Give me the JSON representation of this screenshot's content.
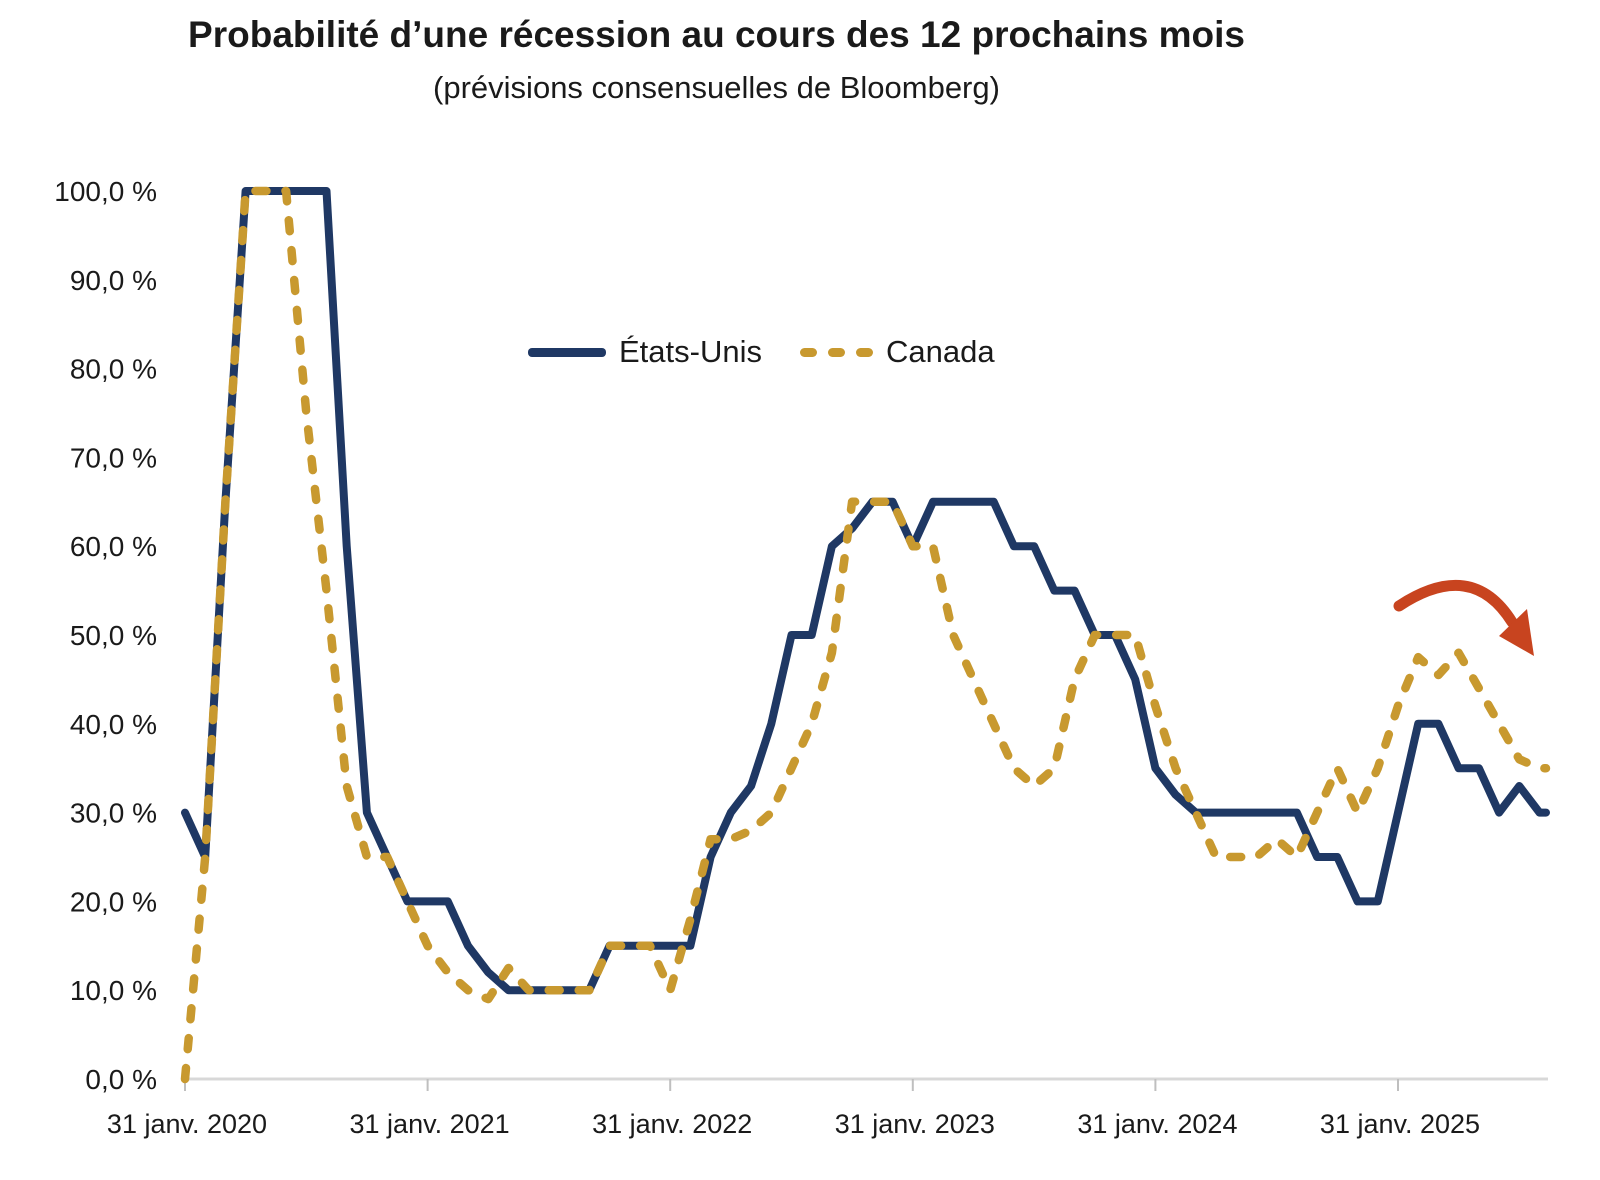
{
  "page": {
    "background": "#FFFFFF"
  },
  "chart_data": {
    "type": "line",
    "title": "Probabilité d’une récession au cours des 12 prochains mois",
    "subtitle": "(prévisions consensuelles de Bloomberg)",
    "grid": false,
    "frequency": "monthly",
    "x_start": "31 janv. 2020",
    "x_end": "août 2025",
    "x_axis": {
      "tick_labels": [
        "31 janv. 2020",
        "31 janv. 2021",
        "31 janv. 2022",
        "31 janv. 2023",
        "31 janv. 2024",
        "31 janv. 2025"
      ]
    },
    "y_axis": {
      "min": 0,
      "max": 100,
      "unit": "%",
      "tick_labels": [
        "0,0 %",
        "10,0 %",
        "20,0 %",
        "30,0 %",
        "40,0 %",
        "50,0 %",
        "60,0 %",
        "70,0 %",
        "80,0 %",
        "90,0 %",
        "100,0 %"
      ]
    },
    "legend": {
      "position": "inside-top-center",
      "entries": [
        "États-Unis",
        "Canada"
      ]
    },
    "series": [
      {
        "name": "États-Unis",
        "color": "#1F3864",
        "style": "solid",
        "values": [
          30,
          25,
          65,
          100,
          100,
          100,
          100,
          100,
          60,
          30,
          25,
          20,
          20,
          20,
          15,
          12,
          10,
          10,
          10,
          10,
          10,
          15,
          15,
          15,
          15,
          15,
          25,
          30,
          33,
          40,
          50,
          50,
          60,
          62,
          65,
          65,
          60,
          65,
          65,
          65,
          65,
          60,
          60,
          55,
          55,
          50,
          50,
          45,
          35,
          32,
          30,
          30,
          30,
          30,
          30,
          30,
          25,
          25,
          20,
          20,
          30,
          40,
          40,
          35,
          35,
          30,
          33,
          30
        ]
      },
      {
        "name": "Canada",
        "color": "#C8992F",
        "style": "dashed",
        "values": [
          0,
          25,
          65,
          100,
          100,
          100,
          75,
          55,
          33,
          25,
          25,
          20,
          15,
          12,
          10,
          9,
          12.5,
          10,
          10,
          10,
          10,
          15,
          15,
          15,
          10,
          18,
          27,
          27,
          28,
          30,
          35,
          40,
          48,
          65,
          65,
          65,
          60,
          60,
          50,
          45,
          40,
          35,
          33,
          35,
          45,
          50,
          50,
          50,
          42,
          35,
          30,
          25,
          25,
          25,
          27,
          25,
          30,
          35,
          30,
          35,
          42,
          47.5,
          45.5,
          48,
          44,
          40,
          36,
          35
        ]
      }
    ],
    "annotation": {
      "type": "curved-arrow",
      "color": "#C8441F",
      "position": "above 2025 peak of Canada line",
      "direction": "down-right"
    }
  }
}
